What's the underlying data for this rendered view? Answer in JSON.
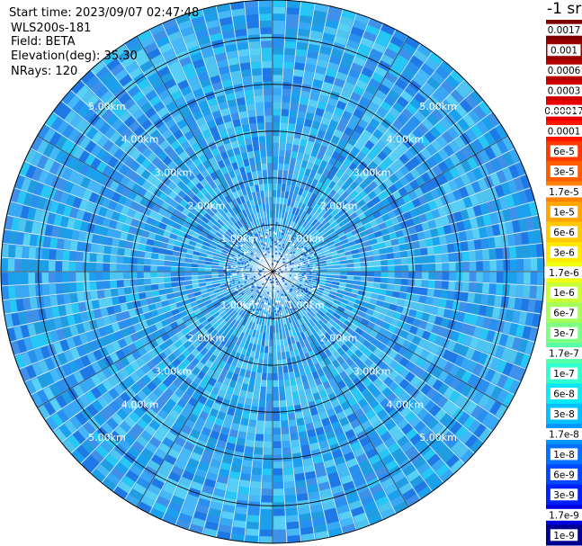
{
  "header": {
    "start_time": "Start time: 2023/09/07 02:47:48",
    "instrument": "WLS200s-181",
    "field": "Field: BETA",
    "elevation": "Elevation(deg): 35.30",
    "nrays": "NRays: 120"
  },
  "colorbar": {
    "unit_label": "-1 sr",
    "ticks": [
      "0.0017",
      "0.001",
      "0.0006",
      "0.0003",
      "0.00017",
      "0.0001",
      "6e-5",
      "3e-5",
      "1.7e-5",
      "1e-5",
      "6e-6",
      "3e-6",
      "1.7e-6",
      "1e-6",
      "6e-7",
      "3e-7",
      "1.7e-7",
      "1e-7",
      "6e-8",
      "3e-8",
      "1.7e-8",
      "1e-8",
      "6e-9",
      "3e-9",
      "1.7e-9",
      "1e-9"
    ],
    "colors": [
      "#7f0000",
      "#9a0000",
      "#b40000",
      "#d00000",
      "#ea0000",
      "#ff1600",
      "#ff3a00",
      "#ff5e00",
      "#ff8200",
      "#ffa600",
      "#ffc800",
      "#ffe800",
      "#eeff10",
      "#c8ff36",
      "#a2ff5c",
      "#7cff82",
      "#56ffa8",
      "#30ffce",
      "#0ae8f5",
      "#00c0ff",
      "#0098ff",
      "#0070ff",
      "#0048ff",
      "#0020ff",
      "#0000e0",
      "#000090"
    ]
  },
  "chart_data": {
    "type": "heatmap",
    "projection": "polar PPI scan",
    "nrays": 120,
    "max_range_km": 5.8,
    "range_rings_km": [
      1.0,
      2.0,
      3.0,
      4.0,
      5.0
    ],
    "ring_labels": [
      "1.00km",
      "2.00km",
      "3.00km",
      "4.00km",
      "5.00km"
    ],
    "spoke_angles_deg": [
      0,
      30,
      60,
      90,
      120,
      150,
      180,
      210,
      240,
      270,
      300,
      330
    ],
    "dominant_value_range": [
      "1.7e-8",
      "1e-7"
    ]
  }
}
